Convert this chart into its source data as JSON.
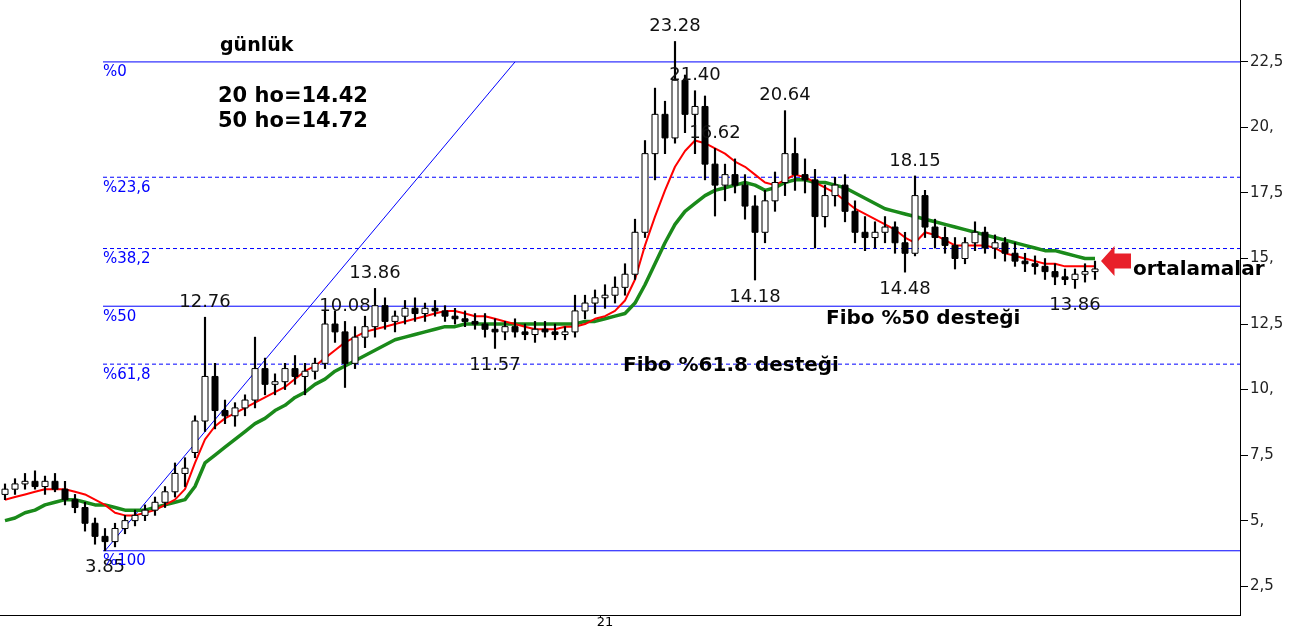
{
  "chart_data": {
    "type": "candlestick",
    "title": "günlük",
    "categories": [
      null,
      null,
      null,
      null,
      null,
      null,
      null,
      null,
      null,
      null,
      null,
      null,
      null,
      null,
      null,
      null,
      null,
      null,
      null,
      null,
      null,
      null,
      null,
      null,
      null,
      null,
      null,
      null,
      null,
      null,
      null,
      null,
      null,
      null,
      null,
      null,
      null,
      null,
      null,
      null,
      null,
      null,
      null,
      null,
      null,
      null,
      null,
      null,
      null,
      null,
      null,
      null,
      null,
      null,
      null,
      null,
      null,
      null,
      null,
      null,
      "21",
      null,
      null,
      null,
      null,
      null,
      null,
      null,
      null,
      null,
      null,
      null,
      null,
      null,
      null,
      null,
      null,
      null,
      null,
      null,
      null,
      null,
      null,
      null,
      null,
      null,
      null,
      null,
      null,
      null,
      null,
      null,
      null,
      null,
      null,
      null,
      null,
      null,
      null,
      null,
      null,
      null,
      null,
      null,
      null,
      null,
      null,
      null,
      null,
      null,
      null,
      null,
      null,
      null,
      null,
      null,
      null,
      null,
      null,
      null,
      null,
      null,
      null,
      null
    ],
    "ohlc": [
      [
        6.0,
        6.4,
        5.8,
        6.2
      ],
      [
        6.2,
        6.6,
        6.0,
        6.4
      ],
      [
        6.4,
        6.8,
        6.2,
        6.5
      ],
      [
        6.5,
        6.9,
        6.2,
        6.3
      ],
      [
        6.3,
        6.7,
        6.0,
        6.5
      ],
      [
        6.5,
        6.8,
        6.1,
        6.2
      ],
      [
        6.2,
        6.5,
        5.6,
        5.8
      ],
      [
        5.8,
        6.0,
        5.3,
        5.5
      ],
      [
        5.5,
        5.7,
        4.6,
        4.9
      ],
      [
        4.9,
        5.1,
        4.1,
        4.4
      ],
      [
        4.4,
        4.7,
        3.85,
        4.2
      ],
      [
        4.2,
        4.9,
        4.0,
        4.7
      ],
      [
        4.7,
        5.2,
        4.5,
        5.0
      ],
      [
        5.0,
        5.4,
        4.8,
        5.2
      ],
      [
        5.2,
        5.6,
        5.0,
        5.4
      ],
      [
        5.4,
        5.9,
        5.2,
        5.7
      ],
      [
        5.7,
        6.3,
        5.5,
        6.1
      ],
      [
        6.1,
        7.2,
        5.9,
        6.8
      ],
      [
        6.8,
        7.4,
        6.3,
        7.0
      ],
      [
        7.6,
        9.0,
        7.4,
        8.8
      ],
      [
        8.8,
        12.76,
        8.4,
        10.5
      ],
      [
        10.5,
        11.0,
        8.5,
        9.2
      ],
      [
        9.2,
        9.6,
        8.7,
        9.0
      ],
      [
        9.0,
        9.5,
        8.6,
        9.3
      ],
      [
        9.3,
        9.8,
        9.0,
        9.6
      ],
      [
        9.6,
        12.0,
        9.3,
        10.8
      ],
      [
        10.8,
        11.2,
        9.8,
        10.2
      ],
      [
        10.2,
        10.6,
        9.8,
        10.3
      ],
      [
        10.3,
        11.0,
        10.0,
        10.8
      ],
      [
        10.8,
        11.3,
        10.2,
        10.5
      ],
      [
        10.5,
        11.0,
        9.8,
        10.7
      ],
      [
        10.7,
        11.2,
        10.4,
        11.0
      ],
      [
        11.0,
        13.0,
        10.8,
        12.5
      ],
      [
        12.5,
        13.0,
        11.8,
        12.2
      ],
      [
        12.2,
        12.6,
        10.08,
        11.0
      ],
      [
        11.0,
        12.4,
        10.8,
        12.0
      ],
      [
        12.0,
        12.8,
        11.6,
        12.4
      ],
      [
        12.4,
        13.86,
        12.0,
        13.2
      ],
      [
        13.2,
        13.5,
        12.3,
        12.6
      ],
      [
        12.6,
        13.0,
        12.2,
        12.8
      ],
      [
        12.8,
        13.4,
        12.5,
        13.1
      ],
      [
        13.1,
        13.5,
        12.6,
        12.9
      ],
      [
        12.9,
        13.3,
        12.6,
        13.1
      ],
      [
        13.1,
        13.4,
        12.8,
        13.0
      ],
      [
        13.0,
        13.2,
        12.6,
        12.8
      ],
      [
        12.8,
        13.1,
        12.5,
        12.7
      ],
      [
        12.7,
        13.0,
        12.4,
        12.6
      ],
      [
        12.6,
        12.9,
        12.3,
        12.5
      ],
      [
        12.5,
        12.9,
        12.0,
        12.3
      ],
      [
        12.3,
        12.7,
        11.57,
        12.2
      ],
      [
        12.2,
        12.6,
        11.9,
        12.4
      ],
      [
        12.4,
        12.7,
        12.0,
        12.2
      ],
      [
        12.2,
        12.5,
        11.9,
        12.1
      ],
      [
        12.1,
        12.6,
        11.8,
        12.3
      ],
      [
        12.3,
        12.6,
        12.0,
        12.2
      ],
      [
        12.2,
        12.5,
        11.9,
        12.1
      ],
      [
        12.1,
        12.4,
        11.9,
        12.2
      ],
      [
        12.2,
        13.6,
        12.0,
        13.0
      ],
      [
        13.0,
        13.6,
        12.7,
        13.3
      ],
      [
        13.3,
        13.8,
        12.9,
        13.5
      ],
      [
        13.5,
        14.0,
        13.1,
        13.6
      ],
      [
        13.6,
        14.3,
        13.3,
        13.9
      ],
      [
        13.9,
        14.8,
        13.6,
        14.4
      ],
      [
        14.4,
        16.5,
        14.2,
        16.0
      ],
      [
        16.0,
        19.5,
        15.8,
        19.0
      ],
      [
        19.0,
        21.5,
        18.0,
        20.5
      ],
      [
        20.5,
        21.0,
        19.0,
        19.6
      ],
      [
        19.6,
        23.28,
        19.4,
        21.8
      ],
      [
        21.8,
        22.0,
        19.8,
        20.5
      ],
      [
        20.5,
        21.4,
        19.0,
        20.8
      ],
      [
        20.8,
        21.2,
        18.0,
        18.6
      ],
      [
        18.6,
        19.2,
        16.62,
        17.8
      ],
      [
        17.8,
        18.6,
        17.2,
        18.2
      ],
      [
        18.2,
        18.8,
        17.5,
        17.8
      ],
      [
        17.8,
        18.2,
        16.5,
        17.0
      ],
      [
        17.0,
        17.4,
        14.18,
        16.0
      ],
      [
        16.0,
        17.6,
        15.6,
        17.2
      ],
      [
        17.2,
        18.3,
        16.8,
        17.9
      ],
      [
        17.9,
        20.64,
        17.4,
        19.0
      ],
      [
        19.0,
        19.6,
        17.6,
        18.2
      ],
      [
        18.2,
        18.8,
        17.5,
        18.0
      ],
      [
        18.0,
        18.4,
        15.4,
        16.6
      ],
      [
        16.6,
        17.8,
        16.2,
        17.4
      ],
      [
        17.4,
        18.1,
        17.0,
        17.8
      ],
      [
        17.8,
        18.2,
        16.4,
        16.8
      ],
      [
        16.8,
        17.2,
        15.6,
        16.0
      ],
      [
        16.0,
        16.6,
        15.3,
        15.8
      ],
      [
        15.8,
        16.4,
        15.4,
        16.0
      ],
      [
        16.0,
        16.6,
        15.6,
        16.2
      ],
      [
        16.2,
        16.4,
        15.2,
        15.6
      ],
      [
        15.6,
        16.0,
        14.48,
        15.2
      ],
      [
        15.2,
        18.15,
        15.1,
        17.4
      ],
      [
        17.4,
        17.6,
        15.8,
        16.2
      ],
      [
        16.2,
        16.5,
        15.4,
        15.8
      ],
      [
        15.8,
        16.2,
        15.2,
        15.5
      ],
      [
        15.5,
        15.8,
        14.6,
        15.0
      ],
      [
        15.0,
        15.8,
        14.8,
        15.6
      ],
      [
        15.6,
        16.4,
        15.3,
        16.0
      ],
      [
        16.0,
        16.2,
        15.2,
        15.4
      ],
      [
        15.4,
        15.9,
        15.0,
        15.6
      ],
      [
        15.6,
        15.8,
        14.9,
        15.2
      ],
      [
        15.2,
        15.6,
        14.7,
        14.9
      ],
      [
        14.9,
        15.2,
        14.5,
        14.8
      ],
      [
        14.8,
        15.1,
        14.4,
        14.7
      ],
      [
        14.7,
        15.0,
        14.2,
        14.5
      ],
      [
        14.5,
        14.8,
        14.0,
        14.3
      ],
      [
        14.3,
        14.6,
        14.0,
        14.2
      ],
      [
        14.2,
        14.6,
        13.86,
        14.4
      ],
      [
        14.4,
        14.8,
        14.1,
        14.5
      ],
      [
        14.5,
        14.9,
        14.2,
        14.6
      ],
      null,
      null,
      null,
      null,
      null,
      null,
      null,
      null,
      null,
      null,
      null,
      null,
      null,
      null
    ],
    "value_labels": [
      null,
      null,
      null,
      null,
      null,
      null,
      null,
      null,
      null,
      null,
      "3.85",
      null,
      null,
      null,
      null,
      null,
      null,
      null,
      null,
      null,
      "12.76",
      null,
      null,
      null,
      null,
      null,
      null,
      null,
      null,
      null,
      null,
      null,
      null,
      null,
      "10.08",
      null,
      null,
      "13.86",
      null,
      null,
      null,
      null,
      null,
      null,
      null,
      null,
      null,
      null,
      null,
      "11.57",
      null,
      null,
      null,
      null,
      null,
      null,
      null,
      null,
      null,
      null,
      null,
      null,
      null,
      null,
      null,
      null,
      null,
      "23.28",
      null,
      "21.40",
      null,
      "16.62",
      null,
      null,
      null,
      "14.18",
      null,
      null,
      "20.64",
      null,
      null,
      null,
      null,
      null,
      null,
      null,
      null,
      null,
      null,
      null,
      "14.48",
      "18.15",
      null,
      null,
      null,
      null,
      null,
      null,
      null,
      null,
      null,
      null,
      null,
      null,
      null,
      null,
      null,
      "13.86",
      null,
      null,
      null,
      null,
      null,
      null,
      null,
      null,
      null,
      null,
      null,
      null,
      null,
      null,
      null,
      null
    ],
    "series": [
      {
        "type": "line",
        "color": "#ff0000",
        "values": [
          5.8,
          5.9,
          6.0,
          6.1,
          6.2,
          6.2,
          6.2,
          6.1,
          6.0,
          5.8,
          5.6,
          5.3,
          5.2,
          5.2,
          5.3,
          5.4,
          5.6,
          5.8,
          6.2,
          7.2,
          8.1,
          8.6,
          8.9,
          9.1,
          9.3,
          9.5,
          9.7,
          9.9,
          10.1,
          10.4,
          10.7,
          10.9,
          11.2,
          11.5,
          11.8,
          12.0,
          12.2,
          12.3,
          12.4,
          12.5,
          12.6,
          12.7,
          12.8,
          12.9,
          13.0,
          13.0,
          12.9,
          12.8,
          12.8,
          12.7,
          12.6,
          12.5,
          12.4,
          12.3,
          12.3,
          12.3,
          12.4,
          12.4,
          12.5,
          12.7,
          12.8,
          13.0,
          13.4,
          14.2,
          15.5,
          16.6,
          17.6,
          18.5,
          19.1,
          19.5,
          19.4,
          19.2,
          19.0,
          18.7,
          18.5,
          18.2,
          17.9,
          17.8,
          18.0,
          18.2,
          18.1,
          17.9,
          17.7,
          17.5,
          17.2,
          16.9,
          16.7,
          16.5,
          16.3,
          16.1,
          15.8,
          15.6,
          16.0,
          15.9,
          15.7,
          15.5,
          15.5,
          15.5,
          15.5,
          15.4,
          15.2,
          15.1,
          15.0,
          14.9,
          14.8,
          14.8,
          14.7,
          14.7,
          14.7,
          14.7,
          null,
          null,
          null,
          null,
          null,
          null,
          null,
          null,
          null,
          null,
          null,
          null,
          null,
          null
        ]
      },
      {
        "type": "line",
        "color": "#1a8a1a",
        "values": [
          5.0,
          5.1,
          5.3,
          5.4,
          5.6,
          5.7,
          5.8,
          5.8,
          5.7,
          5.6,
          5.6,
          5.5,
          5.4,
          5.4,
          5.4,
          5.5,
          5.6,
          5.7,
          5.8,
          6.3,
          7.2,
          7.5,
          7.8,
          8.1,
          8.4,
          8.7,
          8.9,
          9.2,
          9.4,
          9.7,
          9.9,
          10.2,
          10.4,
          10.7,
          10.9,
          11.1,
          11.3,
          11.5,
          11.7,
          11.9,
          12.0,
          12.1,
          12.2,
          12.3,
          12.4,
          12.4,
          12.5,
          12.5,
          12.5,
          12.5,
          12.5,
          12.5,
          12.5,
          12.5,
          12.5,
          12.5,
          12.5,
          12.5,
          12.6,
          12.6,
          12.7,
          12.8,
          12.9,
          13.3,
          14.0,
          14.8,
          15.6,
          16.3,
          16.8,
          17.1,
          17.4,
          17.6,
          17.7,
          17.8,
          17.9,
          17.8,
          17.6,
          17.7,
          17.9,
          18.0,
          18.0,
          17.9,
          17.9,
          17.8,
          17.7,
          17.5,
          17.3,
          17.1,
          16.9,
          16.8,
          16.7,
          16.6,
          16.5,
          16.4,
          16.3,
          16.2,
          16.1,
          16.0,
          15.9,
          15.8,
          15.7,
          15.6,
          15.5,
          15.4,
          15.3,
          15.3,
          15.2,
          15.1,
          15.0,
          15.0,
          null,
          null,
          null,
          null,
          null,
          null,
          null,
          null,
          null,
          null,
          null,
          null,
          null,
          null
        ]
      },
      {
        "type": "line",
        "color": "#0000ff",
        "values": [
          null,
          null,
          null,
          null,
          null,
          null,
          null,
          null,
          null,
          null,
          3.85,
          null,
          null,
          null,
          null,
          null,
          null,
          null,
          null,
          null,
          null,
          null,
          null,
          null,
          null,
          null,
          null,
          null,
          null,
          null,
          null,
          null,
          null,
          null,
          null,
          null,
          null,
          null,
          null,
          null,
          null,
          null,
          null,
          null,
          null,
          null,
          null,
          null,
          null,
          null,
          null,
          22.5,
          null,
          null,
          null,
          null,
          null,
          null,
          null,
          null,
          null,
          null,
          null,
          null,
          null,
          null,
          null,
          null,
          null,
          null,
          null,
          null,
          null,
          null,
          null,
          null,
          null,
          null,
          null,
          null,
          null,
          null,
          null,
          null,
          null,
          null,
          null,
          null,
          null,
          null,
          null,
          null,
          null,
          null,
          null,
          null,
          null,
          null,
          null,
          null,
          null,
          null,
          null,
          null,
          null,
          null,
          null,
          null,
          null,
          null,
          null,
          null,
          null,
          null,
          null,
          null,
          null,
          null,
          null,
          null,
          null,
          null,
          null,
          null
        ]
      }
    ],
    "ylim": [
      1.4,
      24.9
    ],
    "yticks": [
      {
        "value": 2.5,
        "label": "2,5"
      },
      {
        "value": 5,
        "label": "5,"
      },
      {
        "value": 7.5,
        "label": "7,5"
      },
      {
        "value": 10,
        "label": "10,"
      },
      {
        "value": 12.5,
        "label": "12,5"
      },
      {
        "value": 15,
        "label": "15,"
      },
      {
        "value": 17.5,
        "label": "17,5"
      },
      {
        "value": 20,
        "label": "20,"
      },
      {
        "value": 22.5,
        "label": "22,5"
      }
    ],
    "ref_lines": [
      {
        "axis": "y",
        "value": 22.5,
        "color": "#0000ff",
        "line_style": "solid"
      },
      {
        "axis": "y",
        "value": 18.1,
        "color": "#0000ff",
        "line_style": "dashed"
      },
      {
        "axis": "y",
        "value": 15.38,
        "color": "#0000ff",
        "line_style": "dashed"
      },
      {
        "axis": "y",
        "value": 13.18,
        "color": "#0000ff",
        "line_style": "solid"
      },
      {
        "axis": "y",
        "value": 10.97,
        "color": "#0000ff",
        "line_style": "dashed"
      },
      {
        "axis": "y",
        "value": 3.85,
        "color": "#0000ff",
        "line_style": "solid"
      }
    ],
    "annotations": [
      "20 ho=14.42",
      "50 ho=14.72",
      {
        "text": "%0",
        "y": 22.5
      },
      {
        "text": "%23,6",
        "y": 18.1
      },
      {
        "text": "%38,2",
        "y": 15.38
      },
      {
        "text": "%50",
        "y": 13.18
      },
      {
        "text": "%61,8",
        "y": 10.97
      },
      {
        "text": "%100",
        "y": 3.85
      },
      {
        "text": "Fibo %50 desteği",
        "y": 13.18
      },
      {
        "text": "Fibo %61.8 desteği",
        "y": 10.97
      },
      "ortalamalar"
    ],
    "grid": false,
    "legend": false
  }
}
